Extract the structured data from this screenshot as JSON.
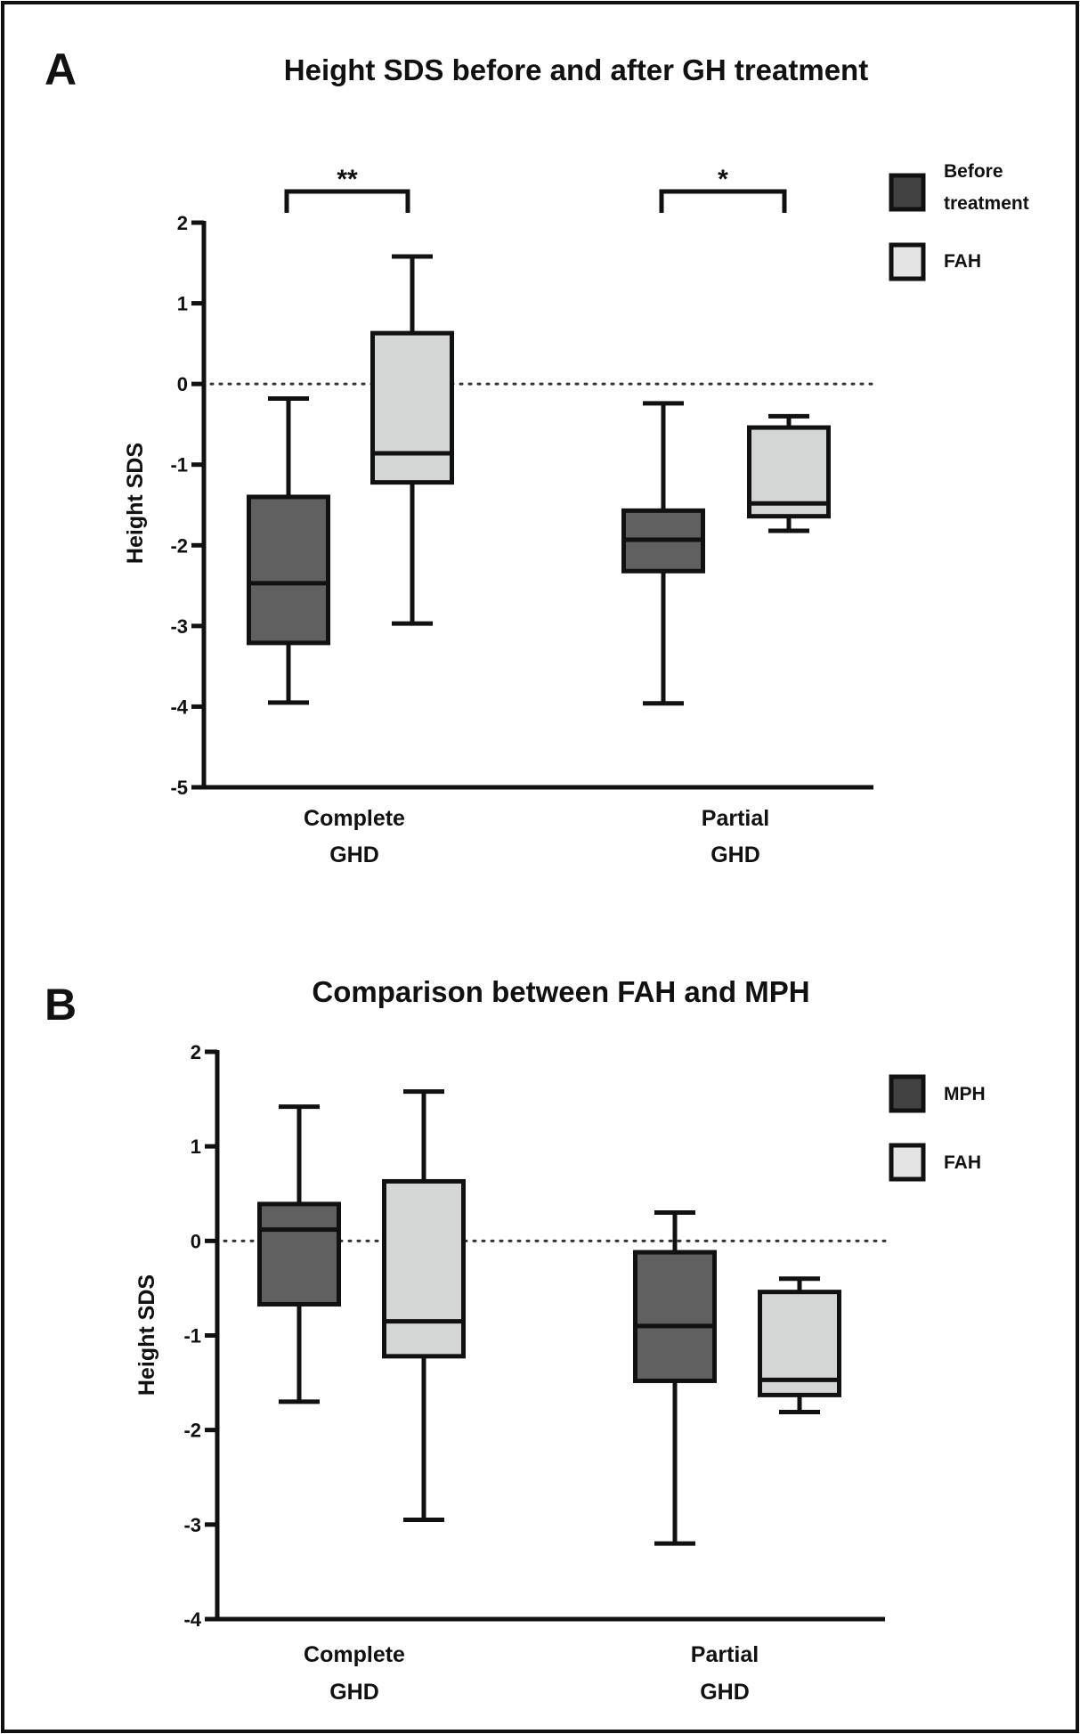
{
  "colors": {
    "dark_box": "#606060",
    "light_box": "#d4d6d6",
    "legend_dark": "#424242",
    "legend_light": "#e4e4e4",
    "line": "#111111"
  },
  "chart_data": [
    {
      "panel": "A",
      "type": "boxplot",
      "title": "Height SDS before and after GH treatment",
      "ylabel": "Height SDS",
      "xlabel": "",
      "ylim": [
        -5,
        2
      ],
      "yticks": [
        2,
        1,
        0,
        -1,
        -2,
        -3,
        -4,
        -5
      ],
      "reference_line": {
        "y": 0,
        "style": "dotted"
      },
      "categories": [
        [
          "Complete",
          "GHD"
        ],
        [
          "Partial",
          "GHD"
        ]
      ],
      "legend": {
        "position": "top-right",
        "entries": [
          [
            "Before",
            "treatment"
          ],
          [
            "FAH"
          ]
        ]
      },
      "series": [
        {
          "name": "Before treatment",
          "color": "dark",
          "boxes": [
            {
              "min": -3.95,
              "q1": -3.21,
              "median": -2.47,
              "q3": -1.4,
              "max": -0.18
            },
            {
              "min": -3.96,
              "q1": -2.32,
              "median": -1.93,
              "q3": -1.57,
              "max": -0.24
            }
          ]
        },
        {
          "name": "FAH",
          "color": "light",
          "boxes": [
            {
              "min": -2.97,
              "q1": -1.22,
              "median": -0.86,
              "q3": 0.63,
              "max": 1.58
            },
            {
              "min": -1.82,
              "q1": -1.64,
              "median": -1.48,
              "q3": -0.54,
              "max": -0.4
            }
          ]
        }
      ],
      "significance": [
        {
          "category": 0,
          "label": "**"
        },
        {
          "category": 1,
          "label": "*"
        }
      ]
    },
    {
      "panel": "B",
      "type": "boxplot",
      "title": "Comparison between FAH and MPH",
      "ylabel": "Height SDS",
      "xlabel": "",
      "ylim": [
        -4,
        2
      ],
      "yticks": [
        2,
        1,
        0,
        -1,
        -2,
        -3,
        -4
      ],
      "reference_line": {
        "y": 0,
        "style": "dotted"
      },
      "categories": [
        [
          "Complete",
          "GHD"
        ],
        [
          "Partial",
          "GHD"
        ]
      ],
      "legend": {
        "position": "top-right",
        "entries": [
          [
            "MPH"
          ],
          [
            "FAH"
          ]
        ]
      },
      "series": [
        {
          "name": "MPH",
          "color": "dark",
          "boxes": [
            {
              "min": -1.7,
              "q1": -0.67,
              "median": 0.12,
              "q3": 0.39,
              "max": 1.42
            },
            {
              "min": -3.2,
              "q1": -1.48,
              "median": -0.9,
              "q3": -0.12,
              "max": 0.3
            }
          ]
        },
        {
          "name": "FAH",
          "color": "light",
          "boxes": [
            {
              "min": -2.95,
              "q1": -1.22,
              "median": -0.85,
              "q3": 0.63,
              "max": 1.58
            },
            {
              "min": -1.81,
              "q1": -1.63,
              "median": -1.47,
              "q3": -0.54,
              "max": -0.4
            }
          ]
        }
      ],
      "significance": []
    }
  ]
}
